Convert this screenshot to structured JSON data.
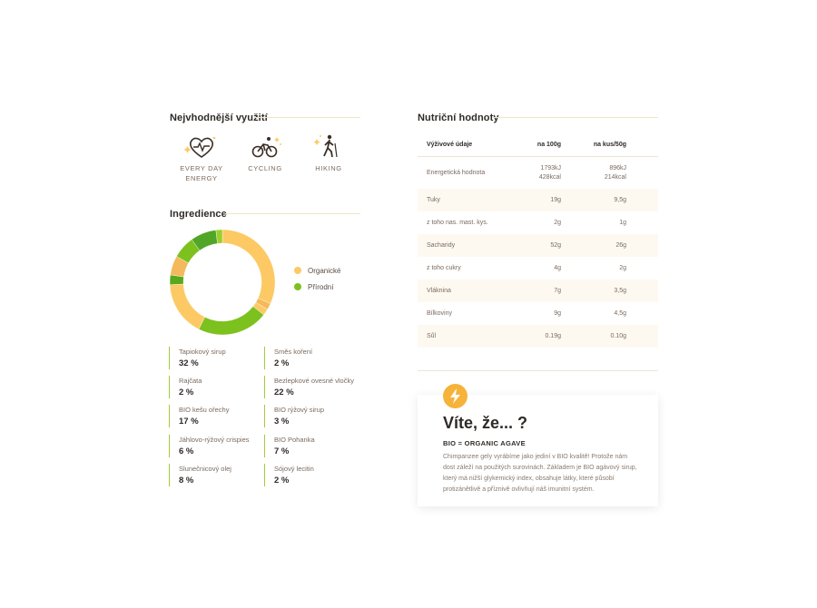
{
  "usage": {
    "title": "Nejvhodnější využití",
    "items": [
      {
        "icon": "heart-icon",
        "label": "EVERY DAY ENERGY"
      },
      {
        "icon": "cyclist-icon",
        "label": "CYCLING"
      },
      {
        "icon": "hiker-icon",
        "label": "HIKING"
      }
    ]
  },
  "ingredients": {
    "title": "Ingredience",
    "legend": [
      {
        "label": "Organické",
        "color": "#fcc964"
      },
      {
        "label": "Přírodní",
        "color": "#7cc11e"
      }
    ],
    "items": [
      {
        "name": "Tapiokový sirup",
        "percent": "32 %",
        "value": 32,
        "color": "#fcc964"
      },
      {
        "name": "Směs koření",
        "percent": "2 %",
        "value": 2,
        "color": "#f3b95a"
      },
      {
        "name": "Rajčata",
        "percent": "2 %",
        "value": 2,
        "color": "#fcc964"
      },
      {
        "name": "Bezlepkové ovesné vločky",
        "percent": "22 %",
        "value": 22,
        "color": "#7cc11e"
      },
      {
        "name": "BIO kešu ořechy",
        "percent": "17 %",
        "value": 17,
        "color": "#fcc964"
      },
      {
        "name": "BIO rýžový sirup",
        "percent": "3 %",
        "value": 3,
        "color": "#58a81c"
      },
      {
        "name": "Jáhlovo-rýžový crispies",
        "percent": "6 %",
        "value": 6,
        "color": "#f3b95a"
      },
      {
        "name": "BIO Pohanka",
        "percent": "7 %",
        "value": 7,
        "color": "#7cc11e"
      },
      {
        "name": "Slunečnicový olej",
        "percent": "8 %",
        "value": 8,
        "color": "#51a627"
      },
      {
        "name": "Sójový lecitin",
        "percent": "2 %",
        "value": 2,
        "color": "#9ccf2a"
      }
    ]
  },
  "nutrition": {
    "title": "Nutriční hodnoty",
    "headers": [
      "Výživové údaje",
      "na 100g",
      "na kus/50g"
    ],
    "rows": [
      {
        "label": "Energetická hodnota",
        "v100": "1793kJ",
        "v100b": "428kcal",
        "vkus": "896kJ",
        "vkusb": "214kcal"
      },
      {
        "label": "Tuky",
        "v100": "19g",
        "vkus": "9,5g"
      },
      {
        "label": "z toho nas. mast. kys.",
        "v100": "2g",
        "vkus": "1g"
      },
      {
        "label": "Sacharidy",
        "v100": "52g",
        "vkus": "26g"
      },
      {
        "label": "z toho cukry",
        "v100": "4g",
        "vkus": "2g"
      },
      {
        "label": "Vláknina",
        "v100": "7g",
        "vkus": "3,5g"
      },
      {
        "label": "Bílkoviny",
        "v100": "9g",
        "vkus": "4,5g"
      },
      {
        "label": "Sůl",
        "v100": "0.19g",
        "vkus": "0.10g"
      }
    ]
  },
  "card": {
    "icon": "lightning-icon",
    "title": "Víte, že... ?",
    "subtitle": "BIO = ORGANIC AGAVE",
    "body": "Chimpanzee gely vyrábíme jako jediní v BIO kvalitě! Protože nám dost záleží na použitých surovinách. Základem je BIO agávový sirup, který má nižší glykemický index, obsahuje látky, které působí protizánětlivě a příznivě ovlivňují náš imunitní systém."
  },
  "colors": {
    "accent": "#fcc964",
    "green": "#7cc11e",
    "bolt": "#f5b33a"
  }
}
